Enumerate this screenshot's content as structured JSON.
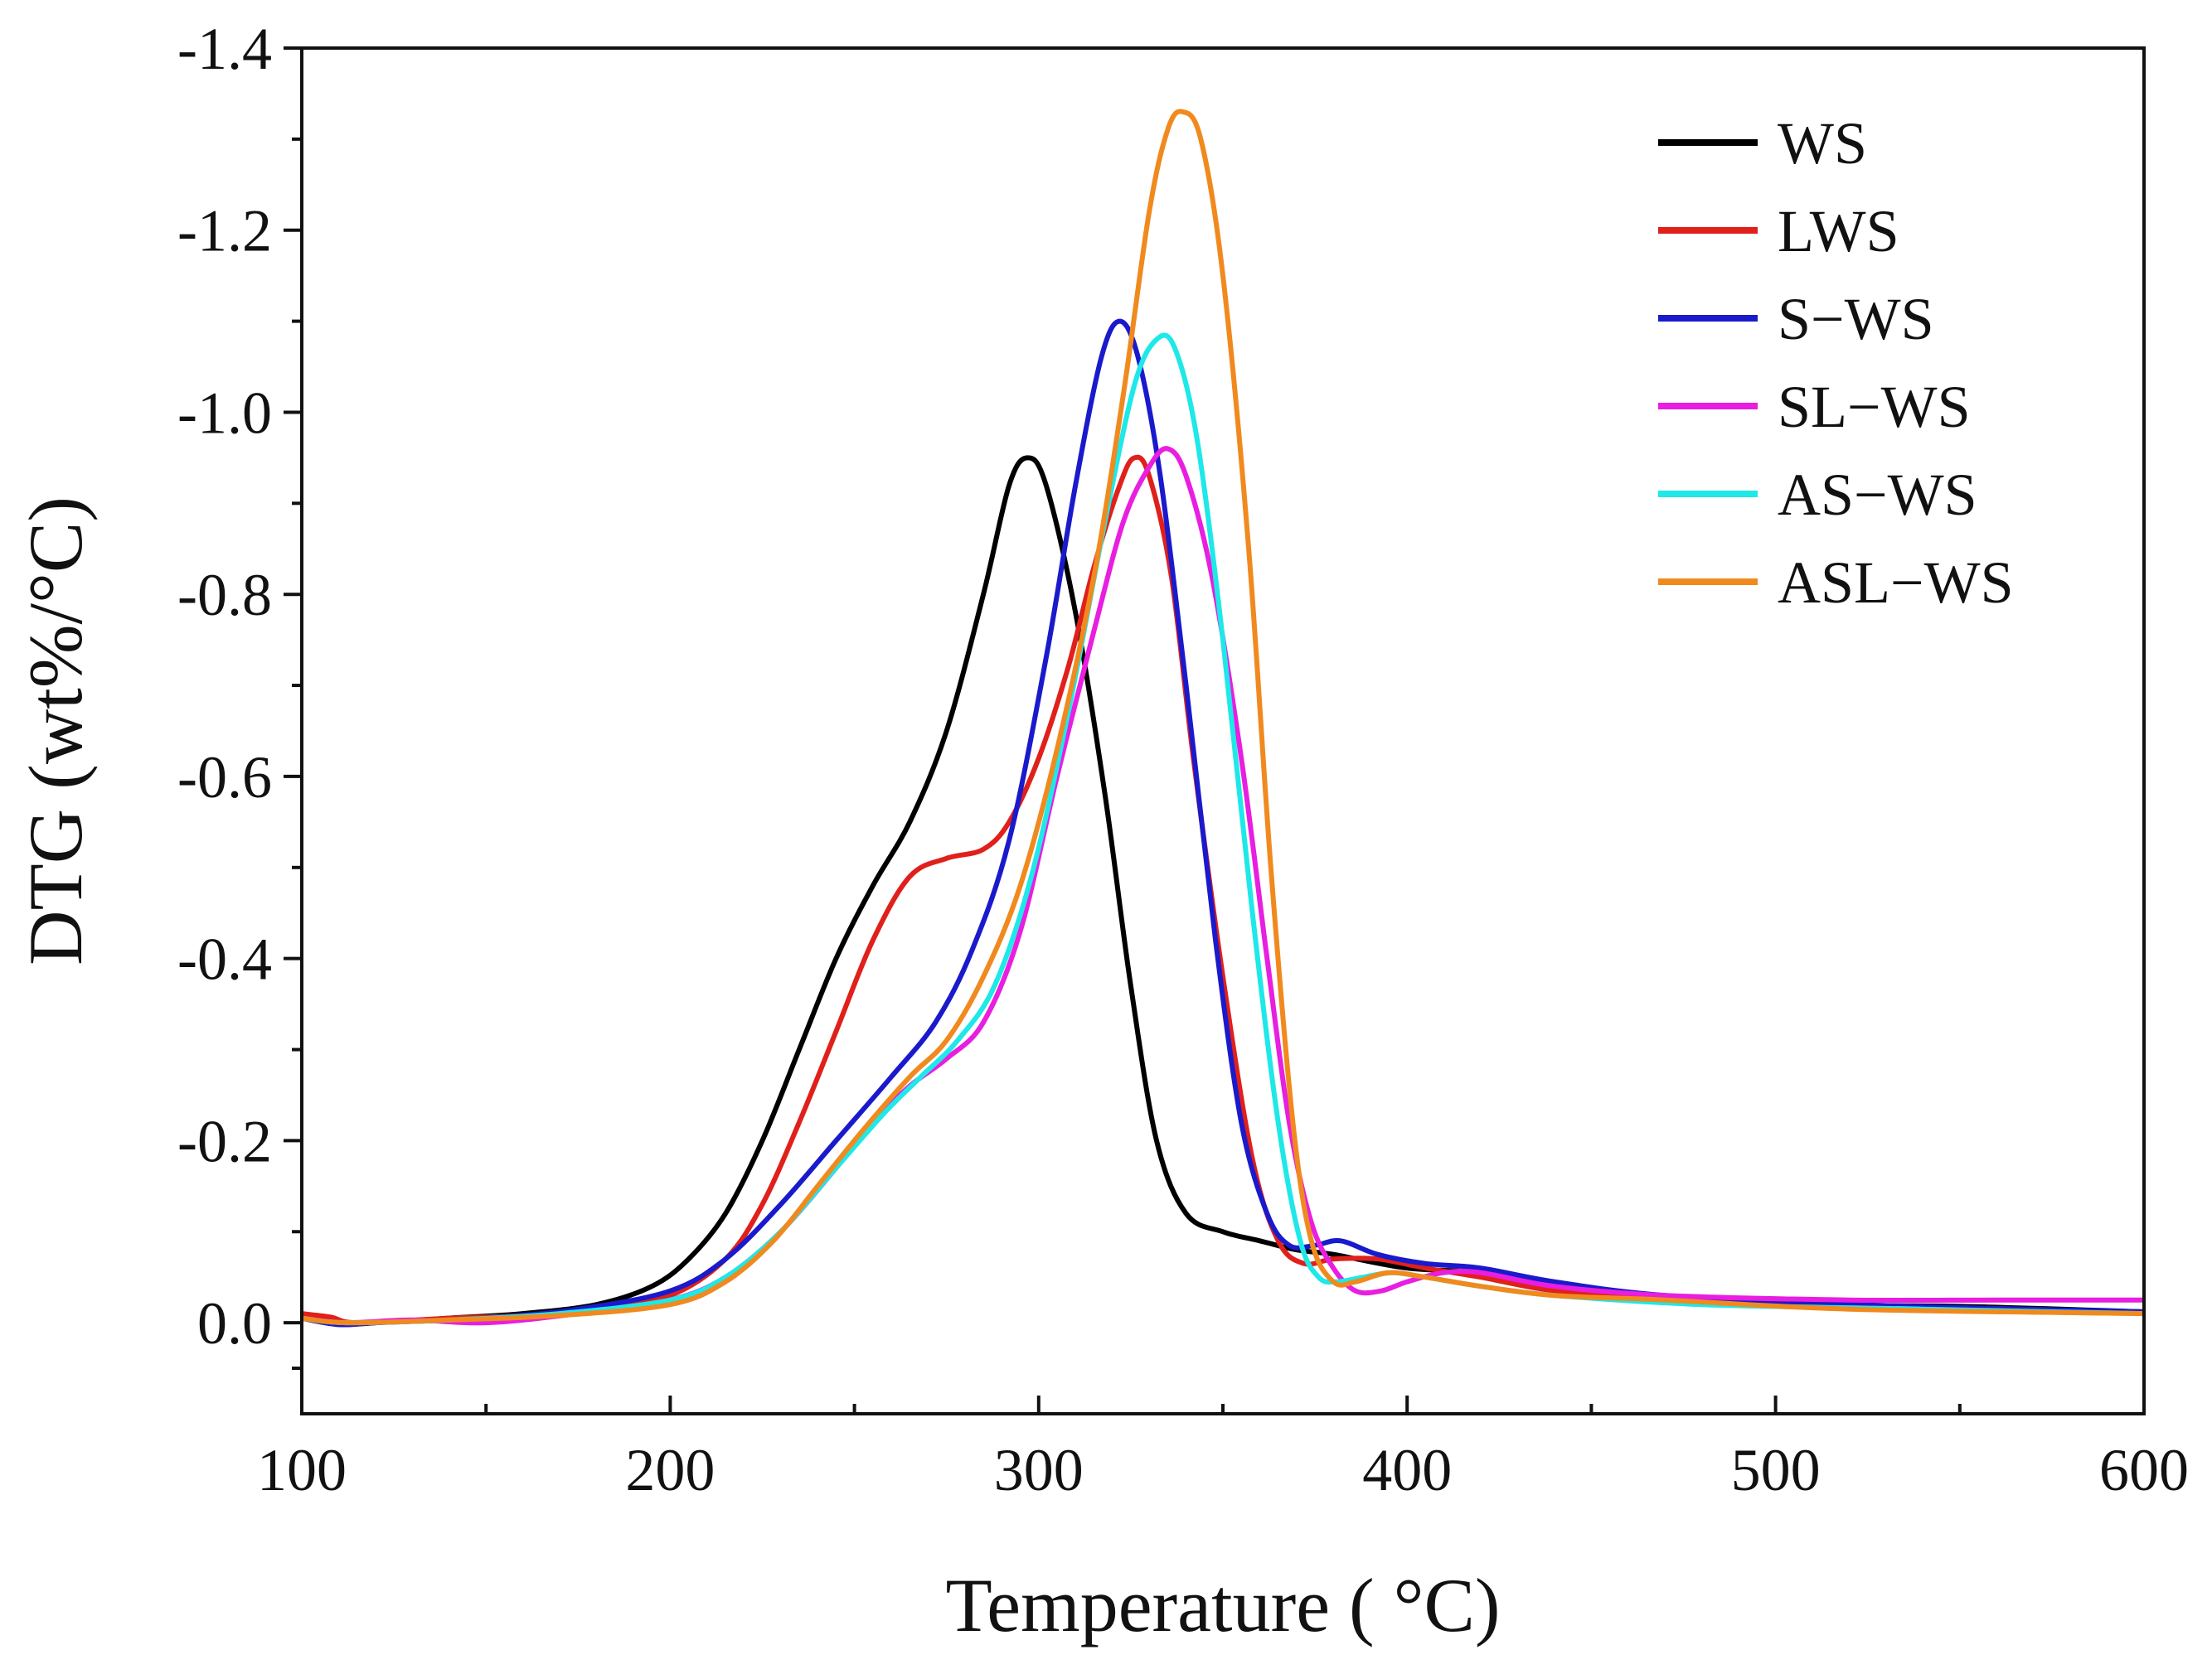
{
  "chart_data": {
    "type": "line",
    "title": "",
    "xlabel": "Temperature ( °C)",
    "ylabel": "DTG (wt%/°C)",
    "xlim": [
      100,
      600
    ],
    "ylim": [
      0.1,
      -1.4
    ],
    "y_axis_reversed": true,
    "x_ticks": [
      100,
      200,
      300,
      400,
      500,
      600
    ],
    "x_tick_labels": [
      "100",
      "200",
      "300",
      "400",
      "500",
      "600"
    ],
    "y_ticks": [
      0.0,
      -0.2,
      -0.4,
      -0.6,
      -0.8,
      -1.0,
      -1.2,
      -1.4
    ],
    "y_tick_labels": [
      "0.0",
      "-0.2",
      "-0.4",
      "-0.6",
      "-0.8",
      "-1.0",
      "-1.2",
      "-1.4"
    ],
    "grid": false,
    "legend_position": "top-right",
    "series": [
      {
        "name": "WS",
        "color": "#000000",
        "points": [
          [
            100,
            -0.005
          ],
          [
            110,
            0.002
          ],
          [
            120,
            0.0
          ],
          [
            140,
            -0.005
          ],
          [
            160,
            -0.01
          ],
          [
            180,
            -0.02
          ],
          [
            195,
            -0.04
          ],
          [
            205,
            -0.07
          ],
          [
            215,
            -0.12
          ],
          [
            225,
            -0.2
          ],
          [
            235,
            -0.3
          ],
          [
            245,
            -0.4
          ],
          [
            255,
            -0.48
          ],
          [
            265,
            -0.55
          ],
          [
            275,
            -0.65
          ],
          [
            285,
            -0.8
          ],
          [
            292,
            -0.92
          ],
          [
            297,
            -0.95
          ],
          [
            302,
            -0.92
          ],
          [
            310,
            -0.78
          ],
          [
            318,
            -0.58
          ],
          [
            325,
            -0.37
          ],
          [
            332,
            -0.2
          ],
          [
            340,
            -0.12
          ],
          [
            350,
            -0.1
          ],
          [
            360,
            -0.09
          ],
          [
            370,
            -0.08
          ],
          [
            380,
            -0.075
          ],
          [
            400,
            -0.06
          ],
          [
            420,
            -0.055
          ],
          [
            440,
            -0.04
          ],
          [
            460,
            -0.03
          ],
          [
            500,
            -0.02
          ],
          [
            550,
            -0.018
          ],
          [
            600,
            -0.012
          ]
        ]
      },
      {
        "name": "LWS",
        "color": "#e0201b",
        "points": [
          [
            100,
            -0.01
          ],
          [
            108,
            -0.006
          ],
          [
            115,
            0.0
          ],
          [
            140,
            -0.005
          ],
          [
            160,
            -0.008
          ],
          [
            180,
            -0.015
          ],
          [
            200,
            -0.03
          ],
          [
            215,
            -0.07
          ],
          [
            225,
            -0.13
          ],
          [
            235,
            -0.22
          ],
          [
            245,
            -0.32
          ],
          [
            255,
            -0.42
          ],
          [
            265,
            -0.49
          ],
          [
            275,
            -0.51
          ],
          [
            285,
            -0.52
          ],
          [
            292,
            -0.55
          ],
          [
            300,
            -0.62
          ],
          [
            308,
            -0.72
          ],
          [
            315,
            -0.83
          ],
          [
            322,
            -0.92
          ],
          [
            326,
            -0.95
          ],
          [
            330,
            -0.93
          ],
          [
            336,
            -0.82
          ],
          [
            342,
            -0.62
          ],
          [
            350,
            -0.38
          ],
          [
            358,
            -0.18
          ],
          [
            365,
            -0.09
          ],
          [
            372,
            -0.065
          ],
          [
            380,
            -0.07
          ],
          [
            392,
            -0.07
          ],
          [
            405,
            -0.06
          ],
          [
            420,
            -0.05
          ],
          [
            440,
            -0.035
          ],
          [
            470,
            -0.025
          ],
          [
            520,
            -0.02
          ],
          [
            600,
            -0.01
          ]
        ]
      },
      {
        "name": "S−WS",
        "color": "#1a1acc",
        "points": [
          [
            100,
            -0.005
          ],
          [
            110,
            0.002
          ],
          [
            120,
            0.0
          ],
          [
            150,
            -0.005
          ],
          [
            175,
            -0.015
          ],
          [
            200,
            -0.035
          ],
          [
            215,
            -0.07
          ],
          [
            230,
            -0.13
          ],
          [
            245,
            -0.2
          ],
          [
            260,
            -0.27
          ],
          [
            272,
            -0.33
          ],
          [
            282,
            -0.41
          ],
          [
            292,
            -0.53
          ],
          [
            302,
            -0.73
          ],
          [
            310,
            -0.92
          ],
          [
            317,
            -1.06
          ],
          [
            322,
            -1.1
          ],
          [
            327,
            -1.06
          ],
          [
            333,
            -0.93
          ],
          [
            340,
            -0.7
          ],
          [
            348,
            -0.42
          ],
          [
            355,
            -0.22
          ],
          [
            362,
            -0.12
          ],
          [
            368,
            -0.085
          ],
          [
            375,
            -0.085
          ],
          [
            382,
            -0.09
          ],
          [
            392,
            -0.075
          ],
          [
            405,
            -0.065
          ],
          [
            420,
            -0.06
          ],
          [
            440,
            -0.045
          ],
          [
            470,
            -0.03
          ],
          [
            520,
            -0.02
          ],
          [
            600,
            -0.012
          ]
        ]
      },
      {
        "name": "SL−WS",
        "color": "#e81ee0",
        "points": [
          [
            100,
            -0.005
          ],
          [
            112,
            0.0
          ],
          [
            130,
            -0.003
          ],
          [
            150,
            0.0
          ],
          [
            175,
            -0.01
          ],
          [
            200,
            -0.025
          ],
          [
            215,
            -0.05
          ],
          [
            230,
            -0.1
          ],
          [
            245,
            -0.17
          ],
          [
            255,
            -0.22
          ],
          [
            265,
            -0.26
          ],
          [
            275,
            -0.29
          ],
          [
            285,
            -0.33
          ],
          [
            295,
            -0.43
          ],
          [
            305,
            -0.6
          ],
          [
            315,
            -0.76
          ],
          [
            323,
            -0.88
          ],
          [
            330,
            -0.94
          ],
          [
            335,
            -0.96
          ],
          [
            340,
            -0.93
          ],
          [
            347,
            -0.82
          ],
          [
            355,
            -0.62
          ],
          [
            362,
            -0.4
          ],
          [
            368,
            -0.22
          ],
          [
            374,
            -0.11
          ],
          [
            380,
            -0.06
          ],
          [
            386,
            -0.035
          ],
          [
            393,
            -0.035
          ],
          [
            400,
            -0.045
          ],
          [
            410,
            -0.055
          ],
          [
            420,
            -0.055
          ],
          [
            440,
            -0.04
          ],
          [
            470,
            -0.03
          ],
          [
            520,
            -0.025
          ],
          [
            560,
            -0.025
          ],
          [
            600,
            -0.025
          ]
        ]
      },
      {
        "name": "AS−WS",
        "color": "#1ee8e8",
        "points": [
          [
            100,
            -0.005
          ],
          [
            112,
            0.0
          ],
          [
            140,
            -0.003
          ],
          [
            170,
            -0.01
          ],
          [
            200,
            -0.025
          ],
          [
            215,
            -0.05
          ],
          [
            230,
            -0.1
          ],
          [
            245,
            -0.17
          ],
          [
            258,
            -0.23
          ],
          [
            268,
            -0.27
          ],
          [
            278,
            -0.31
          ],
          [
            288,
            -0.37
          ],
          [
            298,
            -0.49
          ],
          [
            308,
            -0.67
          ],
          [
            318,
            -0.88
          ],
          [
            326,
            -1.03
          ],
          [
            332,
            -1.08
          ],
          [
            337,
            -1.07
          ],
          [
            343,
            -0.97
          ],
          [
            350,
            -0.75
          ],
          [
            358,
            -0.45
          ],
          [
            365,
            -0.22
          ],
          [
            371,
            -0.09
          ],
          [
            376,
            -0.05
          ],
          [
            381,
            -0.045
          ],
          [
            388,
            -0.05
          ],
          [
            396,
            -0.055
          ],
          [
            405,
            -0.05
          ],
          [
            420,
            -0.04
          ],
          [
            440,
            -0.03
          ],
          [
            480,
            -0.02
          ],
          [
            540,
            -0.015
          ],
          [
            600,
            -0.01
          ]
        ]
      },
      {
        "name": "ASL−WS",
        "color": "#f08a1e",
        "points": [
          [
            100,
            -0.005
          ],
          [
            112,
            0.0
          ],
          [
            140,
            -0.003
          ],
          [
            170,
            -0.008
          ],
          [
            200,
            -0.02
          ],
          [
            215,
            -0.045
          ],
          [
            228,
            -0.09
          ],
          [
            240,
            -0.15
          ],
          [
            252,
            -0.21
          ],
          [
            265,
            -0.27
          ],
          [
            275,
            -0.31
          ],
          [
            285,
            -0.38
          ],
          [
            295,
            -0.48
          ],
          [
            305,
            -0.63
          ],
          [
            315,
            -0.82
          ],
          [
            323,
            -1.02
          ],
          [
            330,
            -1.22
          ],
          [
            335,
            -1.31
          ],
          [
            339,
            -1.33
          ],
          [
            344,
            -1.3
          ],
          [
            350,
            -1.15
          ],
          [
            357,
            -0.85
          ],
          [
            363,
            -0.5
          ],
          [
            369,
            -0.22
          ],
          [
            374,
            -0.09
          ],
          [
            380,
            -0.045
          ],
          [
            386,
            -0.045
          ],
          [
            395,
            -0.055
          ],
          [
            405,
            -0.05
          ],
          [
            420,
            -0.04
          ],
          [
            440,
            -0.03
          ],
          [
            470,
            -0.025
          ],
          [
            520,
            -0.015
          ],
          [
            600,
            -0.01
          ]
        ]
      }
    ]
  }
}
